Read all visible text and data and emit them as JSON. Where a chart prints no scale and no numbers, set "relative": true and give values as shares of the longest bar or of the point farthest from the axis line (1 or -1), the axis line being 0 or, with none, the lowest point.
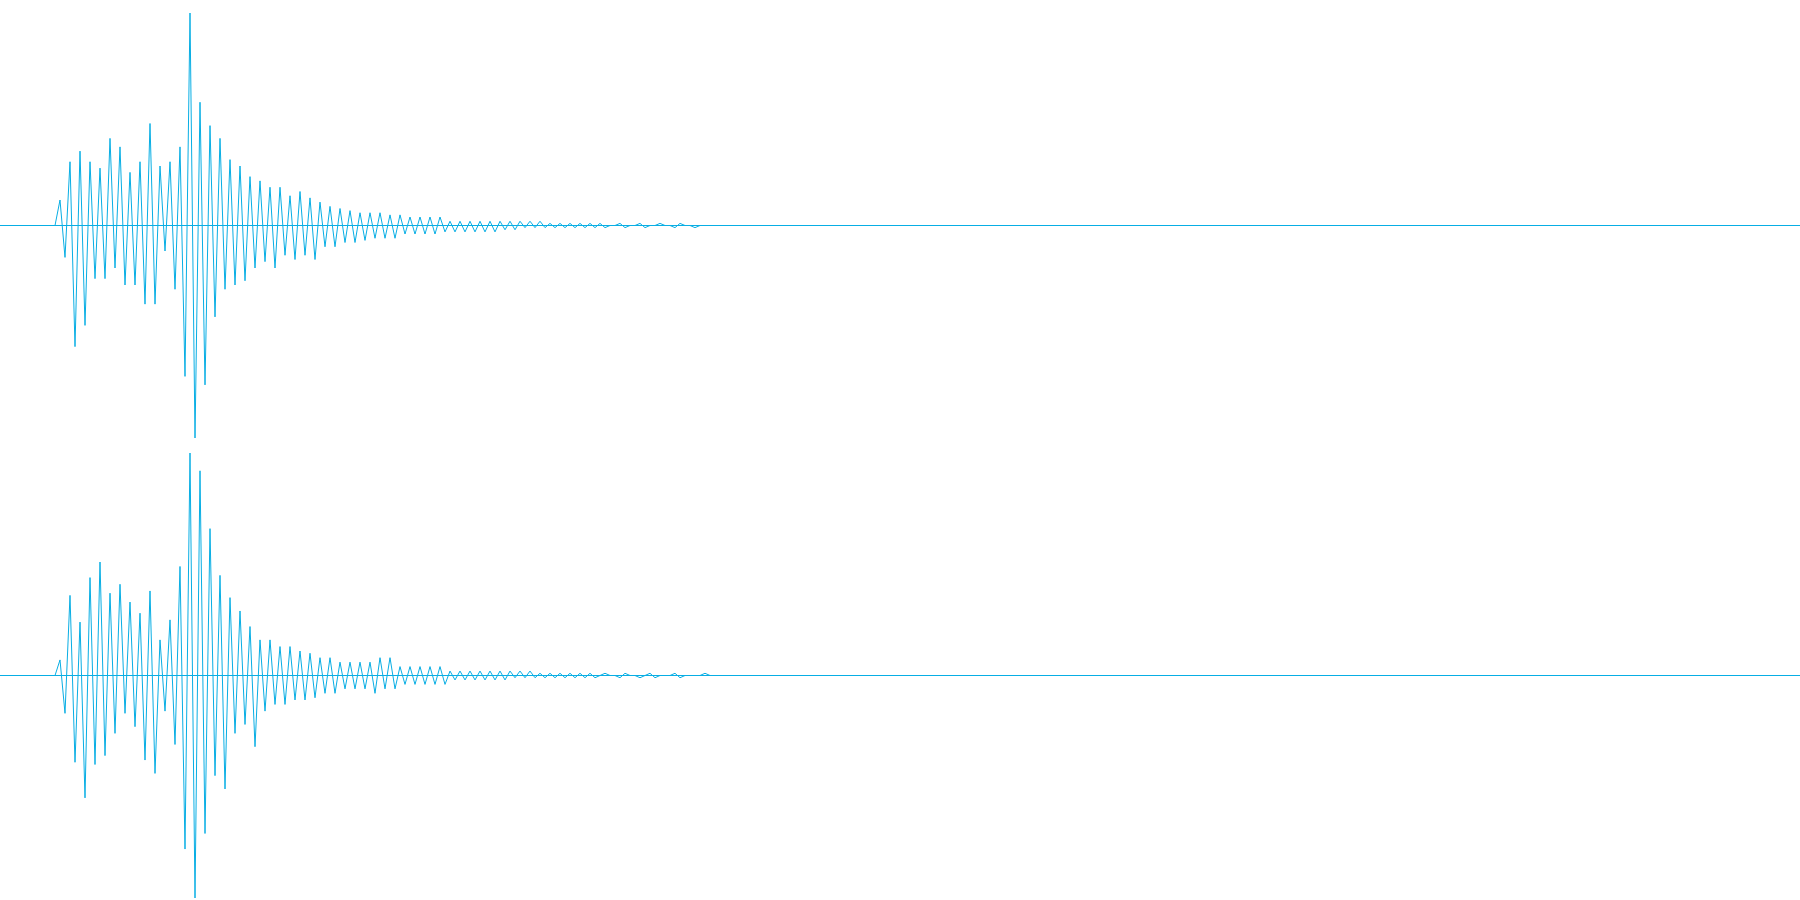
{
  "chart_data": [
    {
      "type": "line",
      "relative": true,
      "tick_labels": false,
      "color": "#08aee4",
      "ref_lines": [
        {
          "axis": "y",
          "value": 0,
          "color": "#08aee4",
          "line_style": "solid"
        }
      ],
      "categories": [
        null,
        null,
        null,
        null,
        null,
        null,
        null,
        null,
        null,
        null,
        null,
        null,
        null,
        null,
        null,
        null,
        null,
        null,
        null,
        null,
        null,
        null,
        null,
        null,
        null,
        null,
        null,
        null,
        null,
        null,
        null,
        null,
        null,
        null,
        null,
        null,
        null,
        null,
        null,
        null,
        null,
        null,
        null,
        null,
        null,
        null,
        null,
        null,
        null,
        null,
        null,
        null,
        null,
        null,
        null,
        null,
        null,
        null,
        null,
        null,
        null,
        null,
        null,
        null,
        null,
        null,
        null,
        null,
        null,
        null,
        null,
        null,
        null,
        null,
        null,
        null,
        null,
        null,
        null,
        null,
        null,
        null,
        null,
        null,
        null,
        null,
        null,
        null,
        null,
        null,
        null,
        null,
        null,
        null,
        null,
        null,
        null,
        null,
        null,
        null,
        null,
        null,
        null,
        null,
        null,
        null,
        null,
        null,
        null,
        null,
        null,
        null,
        null,
        null,
        null,
        null,
        null,
        null,
        null,
        null,
        null,
        null,
        null,
        null,
        null,
        null,
        null,
        null,
        null,
        null,
        null,
        null,
        null,
        null,
        null,
        null,
        null,
        null,
        null,
        null,
        null,
        null,
        null,
        null,
        null,
        null,
        null,
        null,
        null,
        null,
        null,
        null,
        null,
        null,
        null,
        null,
        null,
        null,
        null,
        null,
        null,
        null,
        null,
        null,
        null,
        null,
        null,
        null,
        null,
        null,
        null,
        null,
        null,
        null,
        null,
        null,
        null,
        null,
        null,
        null,
        null,
        null,
        null,
        null,
        null,
        null,
        null,
        null,
        null,
        null,
        null,
        null,
        null,
        null,
        null,
        null,
        null,
        null,
        null,
        null,
        null,
        null,
        null,
        null,
        null,
        null,
        null,
        null,
        null,
        null,
        null,
        null,
        null,
        null,
        null,
        null,
        null,
        null,
        null,
        null,
        null,
        null,
        null,
        null,
        null,
        null,
        null,
        null,
        null,
        null,
        null,
        null,
        null,
        null,
        null,
        null,
        null,
        null,
        null,
        null,
        null,
        null,
        null,
        null,
        null,
        null,
        null,
        null,
        null,
        null,
        null,
        null,
        null,
        null,
        null,
        null,
        null,
        null,
        null,
        null,
        null,
        null,
        null,
        null,
        null,
        null,
        null,
        null,
        null,
        null,
        null,
        null,
        null,
        null,
        null,
        null,
        null,
        null,
        null,
        null,
        null,
        null,
        null,
        null,
        null,
        null,
        null,
        null,
        null,
        null,
        null,
        null,
        null,
        null,
        null,
        null,
        null,
        null,
        null,
        null,
        null,
        null,
        null,
        null,
        null,
        null,
        null,
        null,
        null,
        null,
        null,
        null,
        null,
        null,
        null,
        null,
        null,
        null,
        null,
        null,
        null,
        null,
        null,
        null,
        null,
        null,
        null,
        null,
        null,
        null,
        null,
        null,
        null,
        null,
        null,
        null,
        null,
        null,
        null,
        null,
        null,
        null,
        null,
        null,
        null,
        null,
        null,
        null,
        null,
        null,
        null,
        null,
        null,
        null,
        null,
        null,
        null,
        null,
        null,
        null,
        null
      ],
      "values": [
        0,
        0,
        0,
        0,
        0,
        0,
        0,
        0,
        0,
        0,
        0,
        0,
        0.12,
        -0.15,
        0.3,
        -0.57,
        0.35,
        -0.47,
        0.3,
        -0.25,
        0.27,
        -0.25,
        0.41,
        -0.2,
        0.37,
        -0.28,
        0.25,
        -0.28,
        0.3,
        -0.37,
        0.48,
        -0.37,
        0.28,
        -0.12,
        0.3,
        -0.3,
        0.37,
        -0.71,
        1,
        -1,
        0.58,
        -0.75,
        0.47,
        -0.43,
        0.41,
        -0.3,
        0.31,
        -0.28,
        0.28,
        -0.26,
        0.23,
        -0.2,
        0.21,
        -0.17,
        0.18,
        -0.2,
        0.18,
        -0.14,
        0.14,
        -0.16,
        0.16,
        -0.14,
        0.13,
        -0.16,
        0.11,
        -0.1,
        0.09,
        -0.1,
        0.08,
        -0.08,
        0.07,
        -0.08,
        0.06,
        -0.07,
        0.06,
        -0.06,
        0.06,
        -0.06,
        0.05,
        -0.06,
        0.05,
        -0.04,
        0.04,
        -0.04,
        0.04,
        -0.04,
        0.04,
        -0.04,
        0.04,
        -0.03,
        0.02,
        -0.03,
        0.02,
        -0.03,
        0.02,
        -0.03,
        0.02,
        -0.03,
        0.02,
        -0.03,
        0.02,
        -0.02,
        0.02,
        -0.02,
        0.02,
        -0.01,
        0.02,
        -0.01,
        0.02,
        -0.01,
        0.01,
        -0.01,
        0.01,
        -0.01,
        0.01,
        -0.01,
        0.01,
        -0.01,
        0.01,
        -0.01,
        0.01,
        -0.01,
        0,
        0,
        0.01,
        -0.01,
        0,
        0,
        0.01,
        -0.01,
        0,
        0,
        0.01,
        0,
        0,
        -0.01,
        0.01,
        0,
        0,
        -0.01,
        0,
        0,
        0,
        0,
        0,
        0,
        0,
        0,
        0,
        0,
        0,
        0,
        0,
        0,
        0,
        0,
        0,
        0,
        0,
        0,
        0,
        0,
        0,
        0,
        0,
        0,
        0,
        0,
        0,
        0,
        0,
        0,
        0,
        0,
        0,
        0,
        0,
        0,
        0,
        0,
        0,
        0,
        0,
        0,
        0,
        0,
        0,
        0,
        0,
        0,
        0,
        0,
        0,
        0,
        0,
        0,
        0,
        0,
        0,
        0,
        0,
        0,
        0,
        0,
        0,
        0,
        0,
        0,
        0,
        0,
        0,
        0,
        0,
        0,
        0,
        0,
        0,
        0,
        0,
        0,
        0,
        0,
        0,
        0,
        0,
        0,
        0,
        0,
        0,
        0,
        0,
        0,
        0,
        0,
        0,
        0,
        0,
        0,
        0,
        0,
        0,
        0,
        0,
        0,
        0,
        0,
        0,
        0,
        0,
        0,
        0,
        0,
        0,
        0,
        0,
        0,
        0,
        0,
        0,
        0,
        0,
        0,
        0,
        0,
        0,
        0,
        0,
        0,
        0,
        0,
        0,
        0,
        0,
        0,
        0,
        0,
        0,
        0,
        0,
        0,
        0,
        0,
        0,
        0,
        0,
        0,
        0,
        0,
        0,
        0,
        0,
        0,
        0,
        0,
        0,
        0,
        0,
        0,
        0,
        0,
        0,
        0,
        0,
        0,
        0,
        0,
        0,
        0,
        0,
        0,
        0,
        0,
        0,
        0,
        0,
        0,
        0,
        0,
        0,
        0,
        0,
        0,
        0,
        0,
        0,
        0,
        0,
        0,
        0,
        0,
        0,
        0,
        0,
        0,
        0,
        0,
        0,
        0,
        0,
        0,
        0,
        0,
        0,
        0,
        0,
        0,
        0,
        0,
        0,
        0,
        0,
        0,
        0,
        0,
        0,
        0,
        0,
        0,
        0,
        0,
        0
      ]
    },
    {
      "type": "line",
      "relative": true,
      "tick_labels": false,
      "color": "#08aee4",
      "ref_lines": [
        {
          "axis": "y",
          "value": 0,
          "color": "#08aee4",
          "line_style": "solid"
        }
      ],
      "categories": [
        null,
        null,
        null,
        null,
        null,
        null,
        null,
        null,
        null,
        null,
        null,
        null,
        null,
        null,
        null,
        null,
        null,
        null,
        null,
        null,
        null,
        null,
        null,
        null,
        null,
        null,
        null,
        null,
        null,
        null,
        null,
        null,
        null,
        null,
        null,
        null,
        null,
        null,
        null,
        null,
        null,
        null,
        null,
        null,
        null,
        null,
        null,
        null,
        null,
        null,
        null,
        null,
        null,
        null,
        null,
        null,
        null,
        null,
        null,
        null,
        null,
        null,
        null,
        null,
        null,
        null,
        null,
        null,
        null,
        null,
        null,
        null,
        null,
        null,
        null,
        null,
        null,
        null,
        null,
        null,
        null,
        null,
        null,
        null,
        null,
        null,
        null,
        null,
        null,
        null,
        null,
        null,
        null,
        null,
        null,
        null,
        null,
        null,
        null,
        null,
        null,
        null,
        null,
        null,
        null,
        null,
        null,
        null,
        null,
        null,
        null,
        null,
        null,
        null,
        null,
        null,
        null,
        null,
        null,
        null,
        null,
        null,
        null,
        null,
        null,
        null,
        null,
        null,
        null,
        null,
        null,
        null,
        null,
        null,
        null,
        null,
        null,
        null,
        null,
        null,
        null,
        null,
        null,
        null,
        null,
        null,
        null,
        null,
        null,
        null,
        null,
        null,
        null,
        null,
        null,
        null,
        null,
        null,
        null,
        null,
        null,
        null,
        null,
        null,
        null,
        null,
        null,
        null,
        null,
        null,
        null,
        null,
        null,
        null,
        null,
        null,
        null,
        null,
        null,
        null,
        null,
        null,
        null,
        null,
        null,
        null,
        null,
        null,
        null,
        null,
        null,
        null,
        null,
        null,
        null,
        null,
        null,
        null,
        null,
        null,
        null,
        null,
        null,
        null,
        null,
        null,
        null,
        null,
        null,
        null,
        null,
        null,
        null,
        null,
        null,
        null,
        null,
        null,
        null,
        null,
        null,
        null,
        null,
        null,
        null,
        null,
        null,
        null,
        null,
        null,
        null,
        null,
        null,
        null,
        null,
        null,
        null,
        null,
        null,
        null,
        null,
        null,
        null,
        null,
        null,
        null,
        null,
        null,
        null,
        null,
        null,
        null,
        null,
        null,
        null,
        null,
        null,
        null,
        null,
        null,
        null,
        null,
        null,
        null,
        null,
        null,
        null,
        null,
        null,
        null,
        null,
        null,
        null,
        null,
        null,
        null,
        null,
        null,
        null,
        null,
        null,
        null,
        null,
        null,
        null,
        null,
        null,
        null,
        null,
        null,
        null,
        null,
        null,
        null,
        null,
        null,
        null,
        null,
        null,
        null,
        null,
        null,
        null,
        null,
        null,
        null,
        null,
        null,
        null,
        null,
        null,
        null,
        null,
        null,
        null,
        null,
        null,
        null,
        null,
        null,
        null,
        null,
        null,
        null,
        null,
        null,
        null,
        null,
        null,
        null,
        null,
        null,
        null,
        null,
        null,
        null,
        null,
        null,
        null,
        null,
        null,
        null,
        null,
        null,
        null,
        null,
        null,
        null,
        null,
        null,
        null,
        null,
        null,
        null,
        null,
        null,
        null,
        null,
        null,
        null,
        null
      ],
      "values": [
        0,
        0,
        0,
        0,
        0,
        0,
        0,
        0,
        0,
        0,
        0,
        0,
        0.07,
        -0.17,
        0.36,
        -0.39,
        0.24,
        -0.55,
        0.44,
        -0.4,
        0.51,
        -0.36,
        0.37,
        -0.26,
        0.41,
        -0.17,
        0.33,
        -0.23,
        0.28,
        -0.38,
        0.38,
        -0.44,
        0.16,
        -0.16,
        0.25,
        -0.31,
        0.49,
        -0.78,
        1,
        -1,
        0.92,
        -0.71,
        0.66,
        -0.45,
        0.45,
        -0.51,
        0.35,
        -0.26,
        0.29,
        -0.22,
        0.22,
        -0.32,
        0.16,
        -0.16,
        0.16,
        -0.13,
        0.13,
        -0.13,
        0.13,
        -0.11,
        0.11,
        -0.11,
        0.1,
        -0.1,
        0.08,
        -0.08,
        0.08,
        -0.08,
        0.06,
        -0.06,
        0.06,
        -0.06,
        0.06,
        -0.06,
        0.06,
        -0.08,
        0.08,
        -0.06,
        0.08,
        -0.06,
        0.04,
        -0.04,
        0.04,
        -0.04,
        0.04,
        -0.04,
        0.04,
        -0.04,
        0.04,
        -0.04,
        0.02,
        -0.02,
        0.02,
        -0.02,
        0.02,
        -0.02,
        0.02,
        -0.02,
        0.02,
        -0.02,
        0.02,
        -0.02,
        0.02,
        -0.01,
        0.02,
        -0.01,
        0.02,
        -0.01,
        0.01,
        -0.01,
        0.01,
        -0.01,
        0.01,
        -0.01,
        0.01,
        -0.01,
        0.01,
        -0.01,
        0.01,
        -0.01,
        0,
        0.01,
        0,
        0,
        -0.01,
        0.01,
        0,
        0,
        -0.01,
        0,
        0.01,
        -0.01,
        0,
        0,
        0,
        0.01,
        -0.01,
        0,
        0,
        0,
        0,
        0.01,
        0,
        0,
        0,
        0,
        0,
        0,
        0,
        0,
        0,
        0,
        0,
        0,
        0,
        0,
        0,
        0,
        0,
        0,
        0,
        0,
        0,
        0,
        0,
        0,
        0,
        0,
        0,
        0,
        0,
        0,
        0,
        0,
        0,
        0,
        0,
        0,
        0,
        0,
        0,
        0,
        0,
        0,
        0,
        0,
        0,
        0,
        0,
        0,
        0,
        0,
        0,
        0,
        0,
        0,
        0,
        0,
        0,
        0,
        0,
        0,
        0,
        0,
        0,
        0,
        0,
        0,
        0,
        0,
        0,
        0,
        0,
        0,
        0,
        0,
        0,
        0,
        0,
        0,
        0,
        0,
        0,
        0,
        0,
        0,
        0,
        0,
        0,
        0,
        0,
        0,
        0,
        0,
        0,
        0,
        0,
        0,
        0,
        0,
        0,
        0,
        0,
        0,
        0,
        0,
        0,
        0,
        0,
        0,
        0,
        0,
        0,
        0,
        0,
        0,
        0,
        0,
        0,
        0,
        0,
        0,
        0,
        0,
        0,
        0,
        0,
        0,
        0,
        0,
        0,
        0,
        0,
        0,
        0,
        0,
        0,
        0,
        0,
        0,
        0,
        0,
        0,
        0,
        0,
        0,
        0,
        0,
        0,
        0,
        0,
        0,
        0,
        0,
        0,
        0,
        0,
        0,
        0,
        0,
        0,
        0,
        0,
        0,
        0,
        0,
        0,
        0,
        0,
        0,
        0,
        0,
        0,
        0,
        0,
        0,
        0,
        0,
        0,
        0,
        0,
        0,
        0,
        0,
        0,
        0,
        0,
        0,
        0,
        0,
        0,
        0,
        0,
        0,
        0,
        0,
        0,
        0,
        0,
        0,
        0,
        0,
        0,
        0,
        0,
        0,
        0,
        0,
        0,
        0,
        0,
        0,
        0,
        0,
        0,
        0,
        0,
        0,
        0,
        0,
        0
      ]
    }
  ]
}
